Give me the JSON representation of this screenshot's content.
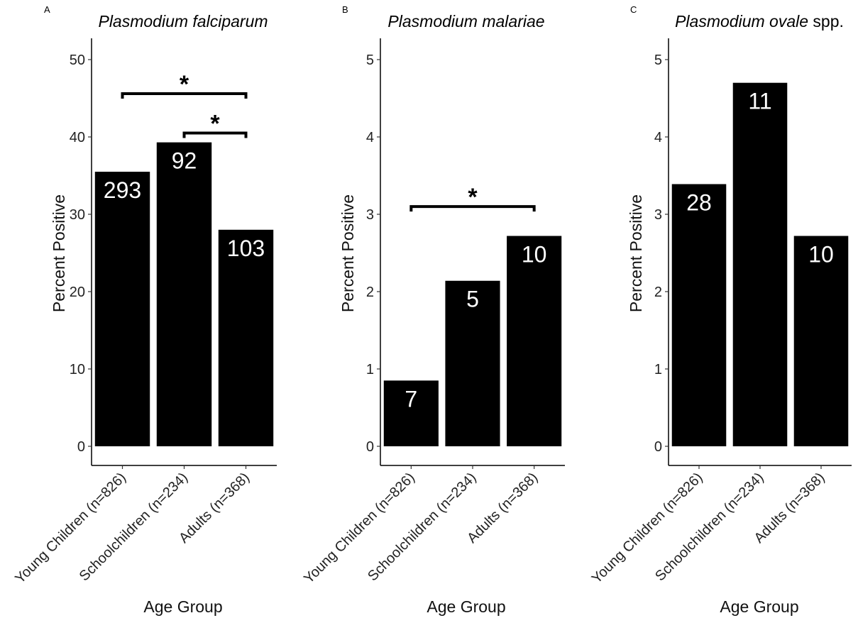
{
  "chart_data": [
    {
      "type": "bar",
      "panel_label": "A",
      "title": "Plasmodium falciparum",
      "title_suffix": "",
      "xlabel": "Age Group",
      "ylabel": "Percent Positive",
      "categories": [
        "Young Children (n=826)",
        "Schoolchildren (n=234)",
        "Adults (n=368)"
      ],
      "values": [
        35.5,
        39.3,
        28.0
      ],
      "data_labels": [
        "293",
        "92",
        "103"
      ],
      "ylim": [
        0,
        52.5
      ],
      "yticks": [
        0,
        10,
        20,
        30,
        40,
        50
      ],
      "grid": false,
      "bar_color": "#000000",
      "significance": [
        {
          "from": 0,
          "to": 2,
          "y": 45.6,
          "label": "*"
        },
        {
          "from": 1,
          "to": 2,
          "y": 40.5,
          "label": "*"
        }
      ]
    },
    {
      "type": "bar",
      "panel_label": "B",
      "title": "Plasmodium malariae",
      "title_suffix": "",
      "xlabel": "Age Group",
      "ylabel": "Percent Positive",
      "categories": [
        "Young Children (n=826)",
        "Schoolchildren (n=234)",
        "Adults (n=368)"
      ],
      "values": [
        0.85,
        2.14,
        2.72
      ],
      "data_labels": [
        "7",
        "5",
        "10"
      ],
      "ylim": [
        0,
        5.25
      ],
      "yticks": [
        0,
        1,
        2,
        3,
        4,
        5
      ],
      "grid": false,
      "bar_color": "#000000",
      "significance": [
        {
          "from": 0,
          "to": 2,
          "y": 3.1,
          "label": "*"
        }
      ]
    },
    {
      "type": "bar",
      "panel_label": "C",
      "title": "Plasmodium ovale",
      "title_suffix": " spp.",
      "xlabel": "Age Group",
      "ylabel": "Percent Positive",
      "categories": [
        "Young Children (n=826)",
        "Schoolchildren (n=234)",
        "Adults (n=368)"
      ],
      "values": [
        3.39,
        4.7,
        2.72
      ],
      "data_labels": [
        "28",
        "11",
        "10"
      ],
      "ylim": [
        0,
        5.25
      ],
      "yticks": [
        0,
        1,
        2,
        3,
        4,
        5
      ],
      "grid": false,
      "bar_color": "#000000",
      "significance": []
    }
  ]
}
